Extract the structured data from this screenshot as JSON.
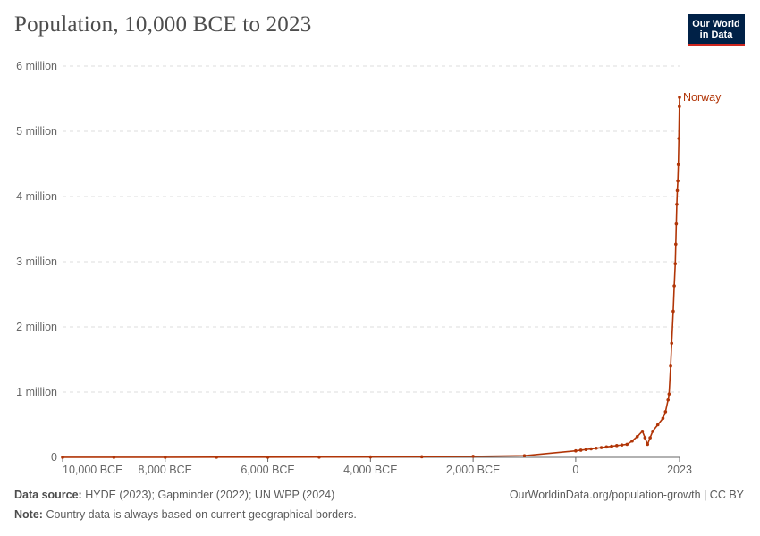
{
  "header": {
    "title": "Population, 10,000 BCE to 2023",
    "logo_line1": "Our World",
    "logo_line2": "in Data"
  },
  "footer": {
    "source_label": "Data source:",
    "source_text": "HYDE (2023); Gapminder (2022); UN WPP (2024)",
    "url_text": "OurWorldinData.org/population-growth | CC BY",
    "note_label": "Note:",
    "note_text": "Country data is always based on current geographical borders."
  },
  "colors": {
    "series": "#b13507",
    "grid": "#dddddd",
    "axis": "#666666"
  },
  "chart_data": {
    "type": "line",
    "title": "Population, 10,000 BCE to 2023",
    "xlabel": "",
    "ylabel": "",
    "xlim": [
      -10000,
      2023
    ],
    "ylim": [
      0,
      6000000
    ],
    "grid": true,
    "y_ticks": [
      {
        "value": 0,
        "label": "0"
      },
      {
        "value": 1000000,
        "label": "1 million"
      },
      {
        "value": 2000000,
        "label": "2 million"
      },
      {
        "value": 3000000,
        "label": "3 million"
      },
      {
        "value": 4000000,
        "label": "4 million"
      },
      {
        "value": 5000000,
        "label": "5 million"
      },
      {
        "value": 6000000,
        "label": "6 million"
      }
    ],
    "x_ticks": [
      {
        "value": -10000,
        "label": "10,000 BCE"
      },
      {
        "value": -8000,
        "label": "8,000 BCE"
      },
      {
        "value": -6000,
        "label": "6,000 BCE"
      },
      {
        "value": -4000,
        "label": "4,000 BCE"
      },
      {
        "value": -2000,
        "label": "2,000 BCE"
      },
      {
        "value": 0,
        "label": "0"
      },
      {
        "value": 2023,
        "label": "2023"
      }
    ],
    "series": [
      {
        "name": "Norway",
        "points": [
          [
            -10000,
            800
          ],
          [
            -9000,
            1000
          ],
          [
            -8000,
            1500
          ],
          [
            -7000,
            2000
          ],
          [
            -6000,
            3000
          ],
          [
            -5000,
            4000
          ],
          [
            -4000,
            6000
          ],
          [
            -3000,
            9000
          ],
          [
            -2000,
            15000
          ],
          [
            -1000,
            25000
          ],
          [
            0,
            100000
          ],
          [
            100,
            110000
          ],
          [
            200,
            120000
          ],
          [
            300,
            130000
          ],
          [
            400,
            140000
          ],
          [
            500,
            150000
          ],
          [
            600,
            160000
          ],
          [
            700,
            170000
          ],
          [
            800,
            180000
          ],
          [
            900,
            190000
          ],
          [
            1000,
            200000
          ],
          [
            1100,
            250000
          ],
          [
            1200,
            320000
          ],
          [
            1300,
            400000
          ],
          [
            1350,
            300000
          ],
          [
            1400,
            200000
          ],
          [
            1450,
            300000
          ],
          [
            1500,
            400000
          ],
          [
            1600,
            500000
          ],
          [
            1700,
            600000
          ],
          [
            1750,
            700000
          ],
          [
            1800,
            880000
          ],
          [
            1820,
            970000
          ],
          [
            1850,
            1400000
          ],
          [
            1870,
            1750000
          ],
          [
            1900,
            2240000
          ],
          [
            1920,
            2630000
          ],
          [
            1940,
            2970000
          ],
          [
            1950,
            3270000
          ],
          [
            1960,
            3580000
          ],
          [
            1970,
            3880000
          ],
          [
            1980,
            4090000
          ],
          [
            1990,
            4240000
          ],
          [
            2000,
            4490000
          ],
          [
            2010,
            4890000
          ],
          [
            2020,
            5380000
          ],
          [
            2023,
            5520000
          ]
        ]
      }
    ]
  }
}
